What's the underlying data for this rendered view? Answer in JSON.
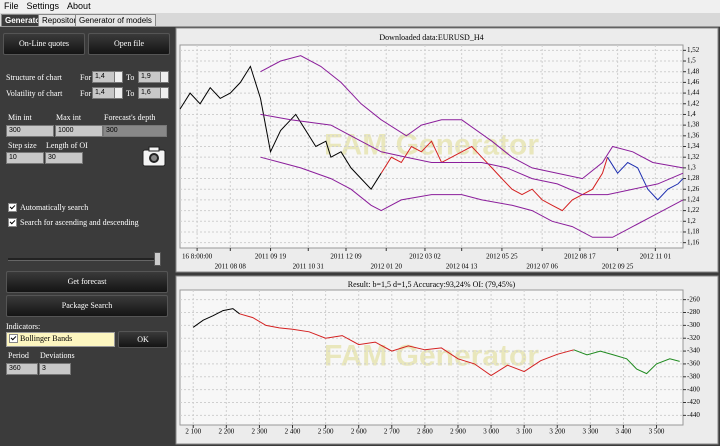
{
  "menu": [
    "File",
    "Settings",
    "About"
  ],
  "tabs": [
    "Generator",
    "Repository",
    "Generator of models"
  ],
  "panel": {
    "buttons": {
      "online": "On-Line quotes",
      "open": "Open file",
      "forecast": "Get forecast",
      "package": "Package Search",
      "ok": "OK"
    },
    "structure": {
      "label": "Structure of chart",
      "for": "For",
      "from": "1,4",
      "to": "To",
      "until": "1,9"
    },
    "volatility": {
      "label": "Volatility of chart",
      "for": "For",
      "from": "1,4",
      "to": "To",
      "until": "1,6"
    },
    "min_int": {
      "label": "Min int",
      "value": "300"
    },
    "max_int": {
      "label": "Max int",
      "value": "1000"
    },
    "depth": {
      "label": "Forecast's depth",
      "value": "300"
    },
    "step": {
      "label": "Step size",
      "value": "10"
    },
    "oi": {
      "label": "Length of OI",
      "value": "30"
    },
    "auto_search": "Automatically search",
    "both_search": "Search for ascending and descending",
    "indicators": "Indicators:",
    "indicator": "Bollinger Bands",
    "period": {
      "label": "Period",
      "value": "360"
    },
    "deviations": {
      "label": "Deviations",
      "value": "3"
    }
  },
  "chart_data": [
    {
      "type": "line",
      "title": "Downloaded data:EURUSD_H4",
      "watermark": "FAM Generator",
      "xlim": [
        0,
        100
      ],
      "ylim": [
        1.15,
        1.53
      ],
      "grid": true,
      "xticks": [
        {
          "value": 3.4,
          "label": "16 8:00:00"
        },
        {
          "value": 10,
          "label": "2011 08 08"
        },
        {
          "value": 18,
          "label": "2011 09 19"
        },
        {
          "value": 25.5,
          "label": "2011 10 31"
        },
        {
          "value": 33,
          "label": "2011 12 09"
        },
        {
          "value": 41,
          "label": "2012 01 20"
        },
        {
          "value": 48.7,
          "label": "2012 03 02"
        },
        {
          "value": 56,
          "label": "2012 04 13"
        },
        {
          "value": 64,
          "label": "2012 05 25"
        },
        {
          "value": 72,
          "label": "2012 07 06"
        },
        {
          "value": 79.5,
          "label": "2012 08 17"
        },
        {
          "value": 87,
          "label": "2012 09 25"
        },
        {
          "value": 94.5,
          "label": "2012 11 01"
        }
      ],
      "yticks": [
        {
          "value": 1.16,
          "label": "1,16"
        },
        {
          "value": 1.18,
          "label": "1,18"
        },
        {
          "value": 1.2,
          "label": "1,2"
        },
        {
          "value": 1.22,
          "label": "1,22"
        },
        {
          "value": 1.24,
          "label": "1,24"
        },
        {
          "value": 1.26,
          "label": "1,26"
        },
        {
          "value": 1.28,
          "label": "1,28"
        },
        {
          "value": 1.3,
          "label": "1,3"
        },
        {
          "value": 1.32,
          "label": "1,32"
        },
        {
          "value": 1.34,
          "label": "1,34"
        },
        {
          "value": 1.36,
          "label": "1,36"
        },
        {
          "value": 1.38,
          "label": "1,38"
        },
        {
          "value": 1.4,
          "label": "1,4"
        },
        {
          "value": 1.42,
          "label": "1,42"
        },
        {
          "value": 1.44,
          "label": "1,44"
        },
        {
          "value": 1.46,
          "label": "1,46"
        },
        {
          "value": 1.48,
          "label": "1,48"
        },
        {
          "value": 1.5,
          "label": "1,5"
        },
        {
          "value": 1.52,
          "label": "1,52"
        }
      ],
      "series": [
        {
          "color": "#000000",
          "x": [
            0,
            2,
            4,
            6,
            8,
            10,
            12,
            14,
            16,
            18,
            20,
            22,
            23,
            25,
            27,
            29,
            30,
            32,
            34,
            36,
            38,
            40
          ],
          "values": [
            1.41,
            1.44,
            1.42,
            1.45,
            1.43,
            1.44,
            1.46,
            1.49,
            1.43,
            1.33,
            1.37,
            1.39,
            1.4,
            1.37,
            1.34,
            1.35,
            1.32,
            1.33,
            1.3,
            1.28,
            1.26,
            1.29
          ]
        },
        {
          "color": "#d42020",
          "x": [
            40,
            42,
            44,
            46,
            48,
            50,
            52,
            54,
            56,
            58,
            60,
            62,
            64,
            66,
            68,
            70,
            72,
            74,
            76,
            78,
            80,
            82,
            84,
            85
          ],
          "values": [
            1.29,
            1.32,
            1.31,
            1.34,
            1.33,
            1.35,
            1.31,
            1.32,
            1.33,
            1.34,
            1.32,
            1.3,
            1.28,
            1.26,
            1.25,
            1.26,
            1.24,
            1.23,
            1.22,
            1.24,
            1.25,
            1.26,
            1.29,
            1.32
          ]
        },
        {
          "color": "#1f2fb0",
          "x": [
            85,
            87,
            89,
            91,
            93,
            95,
            97,
            99,
            100
          ],
          "values": [
            1.32,
            1.29,
            1.31,
            1.3,
            1.26,
            1.24,
            1.26,
            1.27,
            1.28
          ]
        },
        {
          "color": "#8b1e9b",
          "x": [
            16,
            20,
            24,
            28,
            32,
            36,
            40,
            45,
            48,
            52,
            56,
            62,
            66,
            70,
            75,
            80,
            84,
            86,
            90,
            94,
            100
          ],
          "values": [
            1.48,
            1.5,
            1.51,
            1.49,
            1.46,
            1.42,
            1.39,
            1.36,
            1.38,
            1.39,
            1.39,
            1.35,
            1.32,
            1.3,
            1.29,
            1.28,
            1.31,
            1.34,
            1.33,
            1.31,
            1.3
          ]
        },
        {
          "color": "#8b1e9b",
          "x": [
            16,
            22,
            30,
            36,
            40,
            45,
            50,
            55,
            60,
            65,
            70,
            75,
            80,
            85,
            90,
            95,
            100
          ],
          "values": [
            1.4,
            1.39,
            1.38,
            1.35,
            1.33,
            1.32,
            1.31,
            1.31,
            1.31,
            1.3,
            1.28,
            1.27,
            1.25,
            1.25,
            1.26,
            1.27,
            1.29
          ]
        },
        {
          "color": "#8b1e9b",
          "x": [
            16,
            20,
            24,
            30,
            34,
            38,
            40,
            44,
            50,
            56,
            60,
            66,
            70,
            74,
            78,
            82,
            86,
            90,
            94,
            100
          ],
          "values": [
            1.32,
            1.31,
            1.3,
            1.28,
            1.26,
            1.23,
            1.22,
            1.24,
            1.25,
            1.25,
            1.24,
            1.23,
            1.22,
            1.2,
            1.19,
            1.17,
            1.17,
            1.19,
            1.21,
            1.24
          ]
        }
      ]
    },
    {
      "type": "line",
      "title": "Result: b=1,5 d=1,5  Accuracy:93,24%  OI: (79,45%)",
      "watermark": "FAM Generator",
      "xlim": [
        2060,
        3580
      ],
      "ylim": [
        -455,
        -245
      ],
      "grid": true,
      "xticks": [
        {
          "value": 2100,
          "label": "2 100"
        },
        {
          "value": 2200,
          "label": "2 200"
        },
        {
          "value": 2300,
          "label": "2 300"
        },
        {
          "value": 2400,
          "label": "2 400"
        },
        {
          "value": 2500,
          "label": "2 500"
        },
        {
          "value": 2600,
          "label": "2 600"
        },
        {
          "value": 2700,
          "label": "2 700"
        },
        {
          "value": 2800,
          "label": "2 800"
        },
        {
          "value": 2900,
          "label": "2 900"
        },
        {
          "value": 3000,
          "label": "3 000"
        },
        {
          "value": 3100,
          "label": "3 100"
        },
        {
          "value": 3200,
          "label": "3 200"
        },
        {
          "value": 3300,
          "label": "3 300"
        },
        {
          "value": 3400,
          "label": "3 400"
        },
        {
          "value": 3500,
          "label": "3 500"
        }
      ],
      "yticks": [
        -260,
        -280,
        -300,
        -320,
        -340,
        -360,
        -380,
        -400,
        -420,
        -440
      ],
      "series": [
        {
          "color": "#000000",
          "x": [
            2100,
            2130,
            2160,
            2190,
            2220,
            2240
          ],
          "values": [
            -303,
            -292,
            -285,
            -277,
            -274,
            -282
          ]
        },
        {
          "color": "#d42020",
          "x": [
            2240,
            2280,
            2320,
            2360,
            2400,
            2450,
            2500,
            2550,
            2600,
            2650,
            2700,
            2750,
            2800,
            2850,
            2900,
            2950,
            3000,
            3050,
            3100,
            3150,
            3200,
            3250
          ],
          "values": [
            -282,
            -288,
            -300,
            -304,
            -306,
            -310,
            -320,
            -316,
            -330,
            -326,
            -340,
            -332,
            -338,
            -335,
            -352,
            -360,
            -378,
            -362,
            -372,
            -355,
            -345,
            -338
          ]
        },
        {
          "color": "#1f8a1f",
          "x": [
            3250,
            3290,
            3330,
            3370,
            3410,
            3440,
            3470,
            3500,
            3540,
            3570
          ],
          "values": [
            -338,
            -346,
            -340,
            -346,
            -352,
            -368,
            -375,
            -360,
            -352,
            -356
          ]
        }
      ]
    }
  ]
}
